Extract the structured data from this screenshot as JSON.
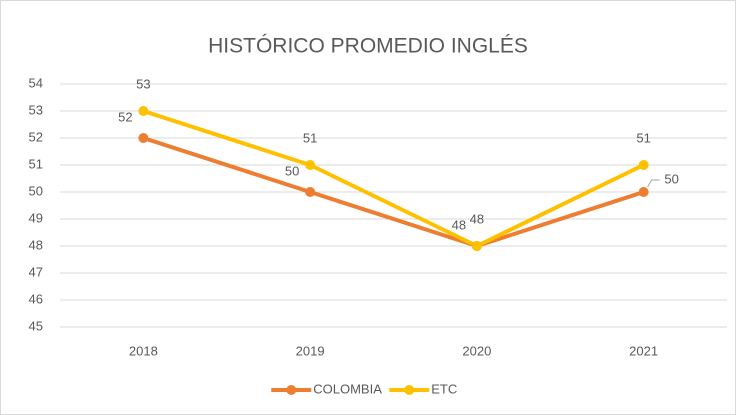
{
  "chart_data": {
    "type": "line",
    "title": "HISTÓRICO PROMEDIO INGLÉS",
    "categories": [
      "2018",
      "2019",
      "2020",
      "2021"
    ],
    "series": [
      {
        "name": "COLOMBIA",
        "color": "#ED7D31",
        "values": [
          52,
          50,
          48,
          50
        ]
      },
      {
        "name": "ETC",
        "color": "#FFC000",
        "values": [
          53,
          51,
          48,
          51
        ]
      }
    ],
    "ylim": [
      45,
      54
    ],
    "yticks": [
      45,
      46,
      47,
      48,
      49,
      50,
      51,
      52,
      53,
      54
    ],
    "grid": true,
    "legend": "bottom"
  }
}
